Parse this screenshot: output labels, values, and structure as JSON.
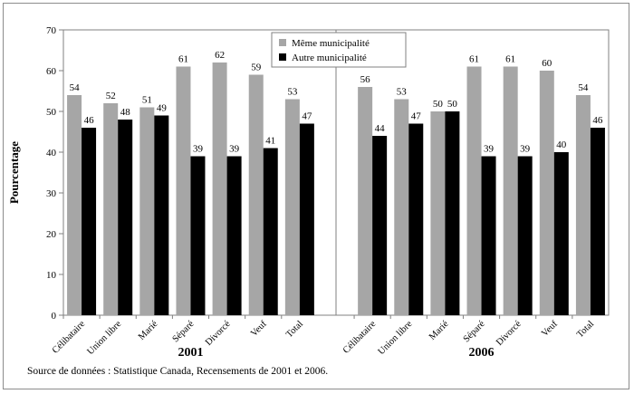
{
  "chart_data": {
    "type": "bar",
    "ylabel": "Pourcentage",
    "ylim": [
      0,
      70
    ],
    "yticks": [
      0,
      10,
      20,
      30,
      40,
      50,
      60,
      70
    ],
    "grid": false,
    "legend_position": "top-center",
    "colors": {
      "meme": "#a6a6a6",
      "autre": "#000000"
    },
    "series_names": [
      "Même municipalité",
      "Autre municipalité"
    ],
    "groups": [
      {
        "label": "2001",
        "categories": [
          "Célibataire",
          "Union libre",
          "Marié",
          "Séparé",
          "Divorcé",
          "Veuf",
          "Total"
        ],
        "series": [
          {
            "name": "Même municipalité",
            "values": [
              54,
              52,
              51,
              61,
              62,
              59,
              53
            ]
          },
          {
            "name": "Autre municipalité",
            "values": [
              46,
              48,
              49,
              39,
              39,
              41,
              47
            ]
          }
        ]
      },
      {
        "label": "2006",
        "categories": [
          "Célibataire",
          "Union libre",
          "Marié",
          "Séparé",
          "Divorcé",
          "Veuf",
          "Total"
        ],
        "series": [
          {
            "name": "Même municipalité",
            "values": [
              56,
              53,
              50,
              61,
              61,
              60,
              54
            ]
          },
          {
            "name": "Autre municipalité",
            "values": [
              44,
              47,
              50,
              39,
              39,
              40,
              46
            ]
          }
        ]
      }
    ]
  },
  "source_note": "Source de données :  Statistique Canada, Recensements de 2001 et 2006."
}
